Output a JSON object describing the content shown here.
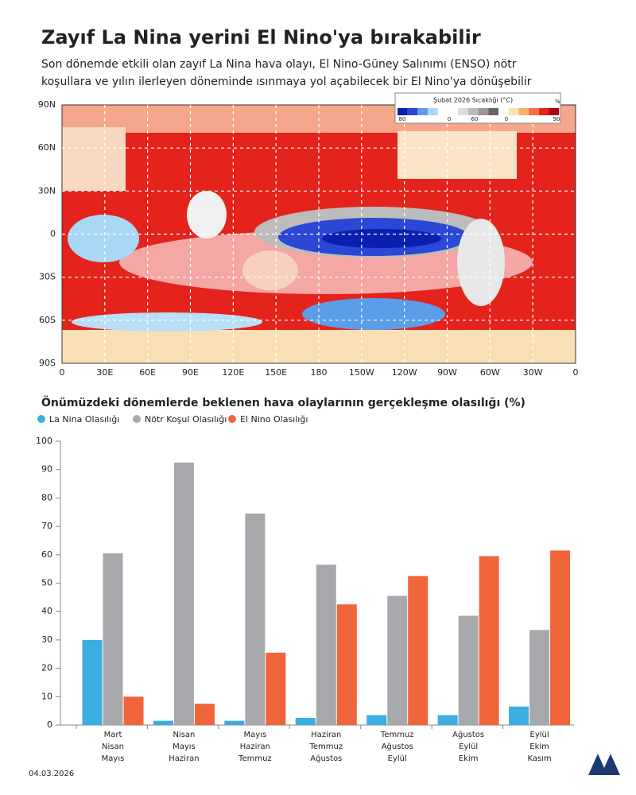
{
  "title": "Zayıf La Nina yerini El Nino'ya bırakabilir",
  "subtitle": [
    "Son dönemde etkili olan zayıf La Nina hava olayı, El Nino-Güney Salınımı (ENSO) nötr",
    "koşullara ve yılın ilerleyen döneminde ısınmaya yol açabilecek bir El Nino'ya dönüşebilir"
  ],
  "map": {
    "legend_title": "Şubat 2026  Sıcaklığı (°C)",
    "legend_unit": "%",
    "legend_labels": [
      "80",
      "0",
      "60",
      "0",
      "90"
    ],
    "lat_labels": [
      "90N",
      "60N",
      "30N",
      "0",
      "30S",
      "60S",
      "90S"
    ],
    "lon_labels": [
      "0",
      "30E",
      "60E",
      "90E",
      "120E",
      "150E",
      "180",
      "150W",
      "120W",
      "90W",
      "60W",
      "30W",
      "0"
    ]
  },
  "chart_data": {
    "type": "bar",
    "title": "Önümüzdeki dönemlerde beklenen hava olaylarının gerçekleşme olasılığı (%)",
    "categories": [
      [
        "Mart",
        "Nisan",
        "Mayıs"
      ],
      [
        "Nisan",
        "Mayıs",
        "Haziran"
      ],
      [
        "Mayıs",
        "Haziran",
        "Temmuz"
      ],
      [
        "Haziran",
        "Temmuz",
        "Ağustos"
      ],
      [
        "Temmuz",
        "Ağustos",
        "Eylül"
      ],
      [
        "Ağustos",
        "Eylül",
        "Ekim"
      ],
      [
        "Eylül",
        "Ekim",
        "Kasım"
      ]
    ],
    "series": [
      {
        "name": "La Nina Olasılığı",
        "color": "#3aaee0",
        "values": [
          30,
          1.5,
          1.5,
          2.5,
          3.5,
          3.5,
          6.5
        ]
      },
      {
        "name": "Nötr Koşul Olasılığı",
        "color": "#a7a8ab",
        "values": [
          60.5,
          92.5,
          74.5,
          56.5,
          45.5,
          38.5,
          33.5
        ]
      },
      {
        "name": "El Nino Olasılığı",
        "color": "#f0643a",
        "values": [
          10,
          7.5,
          25.5,
          42.5,
          52.5,
          59.5,
          61.5
        ]
      }
    ],
    "ylim": [
      0,
      100
    ],
    "yticks": [
      0,
      10,
      20,
      30,
      40,
      50,
      60,
      70,
      80,
      90,
      100
    ],
    "legend": "top-left"
  },
  "footer": {
    "date": "04.03.2026"
  }
}
